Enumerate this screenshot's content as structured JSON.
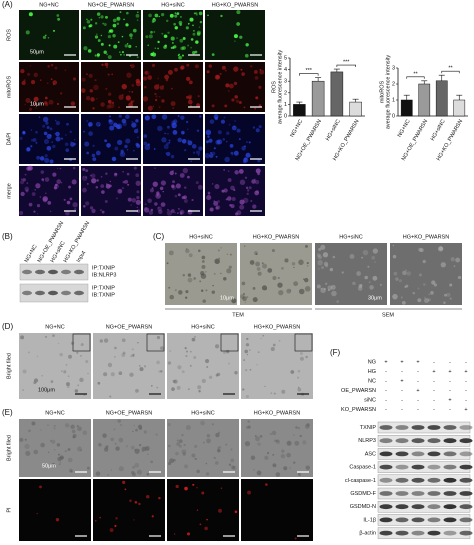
{
  "panel_a": {
    "label": "(A)",
    "columns": [
      "NG+NC",
      "NG+OE_PWARSN",
      "HG+siNC",
      "HG+KO_PWARSN"
    ],
    "rows": [
      "ROS",
      "mitoROS",
      "DAPI",
      "merge"
    ],
    "scale_labels": [
      "50μm",
      "10μm"
    ]
  },
  "chart_data": [
    {
      "type": "bar",
      "ylabel": [
        "ROS",
        "average fluorescence intensity"
      ],
      "categories": [
        "NG+NC",
        "NG+OE_PWARSN",
        "HG+siNC",
        "HG+KO_PWARSN"
      ],
      "values": [
        1.0,
        3.0,
        3.8,
        1.2
      ],
      "errors": [
        0.2,
        0.3,
        0.25,
        0.25
      ],
      "colors": [
        "#111111",
        "#9a9a9a",
        "#666666",
        "#dcdcdc"
      ],
      "ylim": [
        0,
        5
      ],
      "yticks": [
        0,
        1,
        2,
        3,
        4,
        5
      ],
      "annotations": [
        "***",
        "***"
      ]
    },
    {
      "type": "bar",
      "ylabel": [
        "mitoROS",
        "average fluorescence intensity"
      ],
      "categories": [
        "NG+NC",
        "NG+OE_PWARSN",
        "HG+siNC",
        "HG+KO_PWARSN"
      ],
      "values": [
        1.0,
        2.0,
        2.2,
        1.0
      ],
      "errors": [
        0.3,
        0.2,
        0.35,
        0.3
      ],
      "colors": [
        "#111111",
        "#9a9a9a",
        "#666666",
        "#dcdcdc"
      ],
      "ylim": [
        0,
        3
      ],
      "yticks": [
        0,
        1,
        2,
        3
      ],
      "annotations": [
        "**",
        "**"
      ]
    }
  ],
  "panel_b": {
    "label": "(B)",
    "lanes": [
      "NG+NC",
      "NG+OE_PWARSN",
      "HG+siNC",
      "HG+KO_PWARSN",
      "Input"
    ],
    "blots": [
      [
        "IP:TXNIP",
        "IB:NLRP3"
      ],
      [
        "IP:TXNIP",
        "IB:TXNIP"
      ]
    ]
  },
  "panel_c": {
    "label": "(C)",
    "columns": [
      "HG+siNC",
      "HG+KO_PWARSN",
      "HG+siNC",
      "HG+KO_PWARSN"
    ],
    "methods": [
      "TEM",
      "SEM"
    ],
    "scale_labels": [
      "10μm",
      "30μm"
    ]
  },
  "panel_d": {
    "label": "(D)",
    "columns": [
      "NG+NC",
      "NG+OE_PWARSN",
      "HG+siNC",
      "HG+KO_PWARSN"
    ],
    "row": "Bright filed",
    "scale_label": "100μm"
  },
  "panel_e": {
    "label": "(E)",
    "columns": [
      "NG+NC",
      "NG+OE_PWARSN",
      "HG+siNC",
      "HG+KO_PWARSN"
    ],
    "rows": [
      "Bright filed",
      "PI"
    ],
    "scale_label": "50μm"
  },
  "panel_f": {
    "label": "(F)",
    "conditions": [
      {
        "name": "NG",
        "signs": [
          "+",
          "+",
          "+",
          "-",
          "-",
          "-"
        ]
      },
      {
        "name": "HG",
        "signs": [
          "-",
          "-",
          "-",
          "+",
          "+",
          "+"
        ]
      },
      {
        "name": "NC",
        "signs": [
          "-",
          "+",
          "-",
          "-",
          "-",
          "-"
        ]
      },
      {
        "name": "OE_PWARSN",
        "signs": [
          "-",
          "-",
          "+",
          "-",
          "-",
          "-"
        ]
      },
      {
        "name": "siNC",
        "signs": [
          "-",
          "-",
          "-",
          "-",
          "+",
          "-"
        ]
      },
      {
        "name": "KO_PWARSN",
        "signs": [
          "-",
          "-",
          "-",
          "-",
          "-",
          "+"
        ]
      }
    ],
    "proteins": [
      "TXNIP",
      "NLRP3",
      "ASC",
      "Caspase-1",
      "cl-caspase-1",
      "GSDMD-F",
      "GSDMD-N",
      "IL-1β",
      "β-actin"
    ]
  }
}
